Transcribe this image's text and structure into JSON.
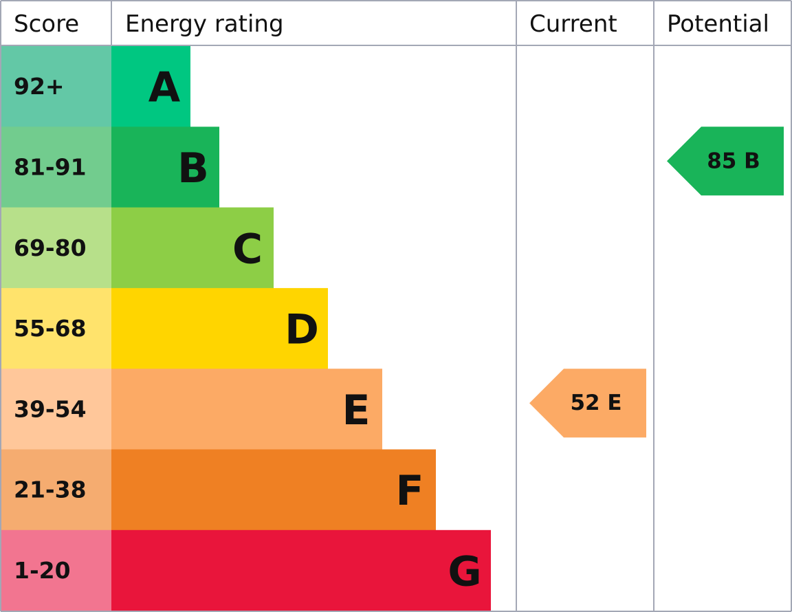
{
  "header": [
    "Score",
    "Energy rating",
    "Current",
    "Potential"
  ],
  "bands": [
    {
      "score": "92+",
      "rating": "A",
      "score_color": "#63c8a6",
      "color": "#00c781"
    },
    {
      "score": "81-91",
      "rating": "B",
      "score_color": "#72cc8e",
      "color": "#19b459"
    },
    {
      "score": "69-80",
      "rating": "C",
      "score_color": "#b7e08a",
      "color": "#8dce46"
    },
    {
      "score": "55-68",
      "rating": "D",
      "score_color": "#ffe36c",
      "color": "#ffd500"
    },
    {
      "score": "39-54",
      "rating": "E",
      "score_color": "#ffc79a",
      "color": "#fcaa65"
    },
    {
      "score": "21-38",
      "rating": "F",
      "score_color": "#f5ac70",
      "color": "#ef8023"
    },
    {
      "score": "1-20",
      "rating": "G",
      "score_color": "#f27590",
      "color": "#e9153b"
    }
  ],
  "current": {
    "score": 52,
    "rating": "E"
  },
  "potential": {
    "score": 85,
    "rating": "B"
  }
}
